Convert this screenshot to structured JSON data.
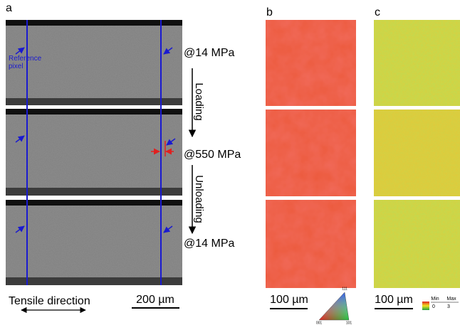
{
  "panels": [
    {
      "label": "a",
      "reference": "Reference pixel",
      "stages": [
        "@14 MPa",
        "@550 MPa",
        "@14 MPa"
      ],
      "steps": [
        "Loading",
        "Unloading"
      ],
      "direction": "Tensile direction",
      "scale_bar": "200 µm"
    },
    {
      "label": "b",
      "scale_bar": "100 µm",
      "ipf_corners": [
        "111",
        "001",
        "101"
      ]
    },
    {
      "label": "c",
      "scale_bar": "100 µm",
      "colorbar_min": "Min",
      "colorbar_max": "Max",
      "colorbar_low": "0",
      "colorbar_high": "3"
    }
  ]
}
